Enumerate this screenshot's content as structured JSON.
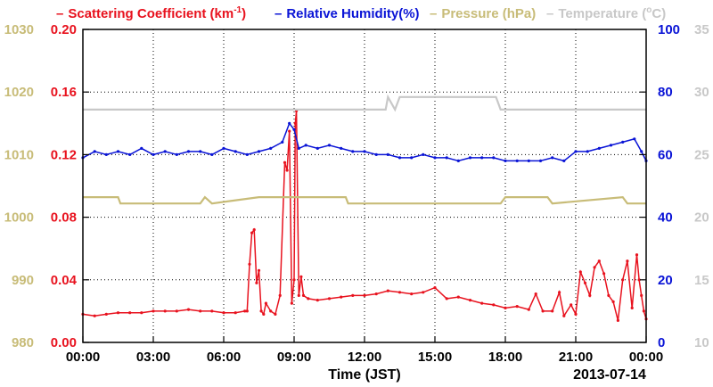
{
  "chart_data": {
    "type": "line",
    "legend": [
      {
        "dash": "–",
        "text": "Scattering Coefficient (km",
        "sup": "-1",
        "close": ")",
        "color": "#e8121e"
      },
      {
        "dash": "–",
        "text": "Relative Humidity(%)",
        "color": "#0a14d6"
      },
      {
        "dash": "–",
        "text": "Pressure (hPa)",
        "color": "#c8bc78"
      },
      {
        "dash": "–",
        "text": "Temperature (",
        "sup": "o",
        "close": "C)",
        "color": "#c8c8c8"
      }
    ],
    "xlabel": "Time (JST)",
    "date_label": "2013-07-14",
    "x_ticks": [
      "00:00",
      "03:00",
      "06:00",
      "09:00",
      "12:00",
      "15:00",
      "18:00",
      "21:00",
      "00:00"
    ],
    "xlim_hours": [
      0,
      24
    ],
    "grid": true,
    "axes": {
      "pressure": {
        "ticks": [
          "980",
          "990",
          "1000",
          "1010",
          "1020",
          "1030"
        ],
        "range": [
          980,
          1030
        ],
        "color": "#c8bc78"
      },
      "scattering": {
        "ticks": [
          "0.00",
          "0.04",
          "0.08",
          "0.12",
          "0.16",
          "0.20"
        ],
        "range": [
          0,
          0.2
        ],
        "color": "#e8121e"
      },
      "humidity": {
        "ticks": [
          "0",
          "20",
          "40",
          "60",
          "80",
          "100"
        ],
        "range": [
          0,
          100
        ],
        "color": "#0a14d6"
      },
      "temperature": {
        "ticks": [
          "10",
          "15",
          "20",
          "25",
          "30",
          "35"
        ],
        "range": [
          10,
          35
        ],
        "color": "#c8c8c8"
      }
    },
    "series": [
      {
        "name": "Scattering Coefficient (km-1)",
        "axis": "scattering",
        "color": "#e8121e",
        "x": [
          0,
          0.5,
          1,
          1.5,
          2,
          2.5,
          3,
          3.5,
          4,
          4.5,
          5,
          5.5,
          6,
          6.5,
          6.9,
          7,
          7.1,
          7.2,
          7.3,
          7.4,
          7.5,
          7.6,
          7.7,
          7.8,
          8,
          8.2,
          8.4,
          8.6,
          8.7,
          8.8,
          8.9,
          9.0,
          9.05,
          9.1,
          9.2,
          9.3,
          9.4,
          9.6,
          10,
          10.5,
          11,
          11.5,
          12,
          12.5,
          13,
          13.5,
          14,
          14.5,
          15,
          15.5,
          16,
          16.5,
          17,
          17.5,
          18,
          18.5,
          19,
          19.3,
          19.6,
          20,
          20.3,
          20.5,
          20.8,
          21.0,
          21.2,
          21.4,
          21.6,
          21.8,
          22.0,
          22.2,
          22.4,
          22.6,
          22.8,
          23.0,
          23.2,
          23.4,
          23.6,
          23.7,
          23.8,
          23.9,
          24
        ],
        "y": [
          0.018,
          0.017,
          0.018,
          0.019,
          0.019,
          0.019,
          0.02,
          0.02,
          0.02,
          0.021,
          0.02,
          0.02,
          0.019,
          0.019,
          0.02,
          0.02,
          0.05,
          0.07,
          0.072,
          0.038,
          0.046,
          0.02,
          0.018,
          0.025,
          0.02,
          0.018,
          0.03,
          0.115,
          0.11,
          0.135,
          0.025,
          0.04,
          0.14,
          0.148,
          0.03,
          0.042,
          0.03,
          0.028,
          0.027,
          0.028,
          0.029,
          0.03,
          0.03,
          0.031,
          0.033,
          0.032,
          0.031,
          0.032,
          0.035,
          0.028,
          0.029,
          0.027,
          0.025,
          0.024,
          0.022,
          0.023,
          0.021,
          0.031,
          0.02,
          0.02,
          0.032,
          0.017,
          0.024,
          0.018,
          0.045,
          0.038,
          0.03,
          0.048,
          0.052,
          0.044,
          0.03,
          0.026,
          0.014,
          0.04,
          0.052,
          0.022,
          0.056,
          0.04,
          0.03,
          0.02,
          0.015
        ]
      },
      {
        "name": "Relative Humidity(%)",
        "axis": "humidity",
        "color": "#0a14d6",
        "x": [
          0,
          0.5,
          1,
          1.5,
          2,
          2.5,
          3,
          3.5,
          4,
          4.5,
          5,
          5.5,
          6,
          6.5,
          7,
          7.5,
          8,
          8.5,
          8.8,
          9.0,
          9.2,
          9.5,
          10,
          10.5,
          11,
          11.5,
          12,
          12.5,
          13,
          13.5,
          14,
          14.5,
          15,
          15.5,
          16,
          16.5,
          17,
          17.5,
          18,
          18.5,
          19,
          19.5,
          20,
          20.5,
          21,
          21.5,
          22,
          22.5,
          23,
          23.5,
          23.8,
          24
        ],
        "y": [
          59,
          61,
          60,
          61,
          60,
          62,
          60,
          61,
          60,
          61,
          61,
          60,
          62,
          61,
          60,
          61,
          62,
          64,
          70,
          68,
          62,
          63,
          62,
          63,
          62,
          61,
          61,
          60,
          60,
          59,
          59,
          60,
          59,
          59,
          58,
          59,
          59,
          59,
          58,
          58,
          58,
          58,
          59,
          58,
          61,
          61,
          62,
          63,
          64,
          65,
          61,
          58
        ]
      },
      {
        "name": "Pressure (hPa)",
        "axis": "pressure",
        "color": "#c8bc78",
        "x": [
          0,
          1.5,
          1.6,
          2.0,
          2.3,
          5.0,
          5.2,
          5.5,
          7.5,
          11.2,
          11.3,
          15,
          17.8,
          18.0,
          19.8,
          20,
          23.0,
          23.2,
          24
        ],
        "y": [
          1003.2,
          1003.2,
          1002.2,
          1002.2,
          1002.2,
          1002.2,
          1003.2,
          1002.2,
          1003.2,
          1003.2,
          1002.2,
          1002.2,
          1002.2,
          1003.2,
          1003.2,
          1002.2,
          1003.2,
          1002.2,
          1002.2
        ]
      },
      {
        "name": "Temperature (oC)",
        "axis": "temperature",
        "color": "#c8c8c8",
        "x": [
          0,
          12.9,
          13.0,
          13.3,
          13.5,
          17.6,
          17.8,
          24
        ],
        "y": [
          28.6,
          28.6,
          29.6,
          28.6,
          29.6,
          29.6,
          28.6,
          28.6
        ]
      }
    ]
  }
}
